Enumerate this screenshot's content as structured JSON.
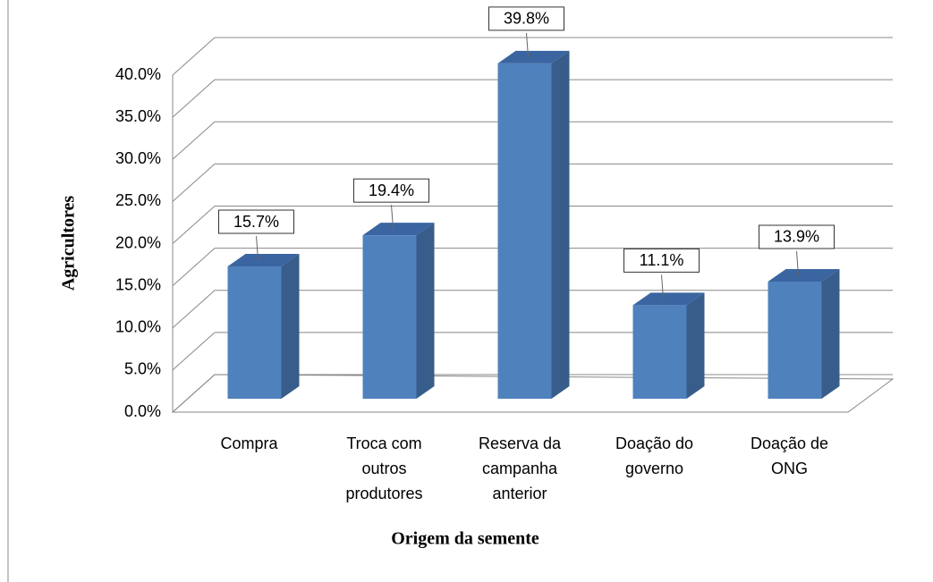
{
  "chart_data": {
    "type": "bar3d",
    "categories": [
      "Compra",
      "Troca com outros produtores",
      "Reserva da campanha anterior",
      "Doação do governo",
      "Doação de ONG"
    ],
    "values": [
      15.7,
      19.4,
      39.8,
      11.1,
      13.9
    ],
    "value_labels": [
      "15.7%",
      "19.4%",
      "39.8%",
      "11.1%",
      "13.9%"
    ],
    "color": "#4f81bd",
    "ylabel": "Agricultores",
    "xlabel": "Origem da semente",
    "ylim": [
      0,
      40
    ],
    "yticks": [
      {
        "value": 0,
        "label": "0.0%"
      },
      {
        "value": 5,
        "label": "5.0%"
      },
      {
        "value": 10,
        "label": "10.0%"
      },
      {
        "value": 15,
        "label": "15.0%"
      },
      {
        "value": 20,
        "label": "20.0%"
      },
      {
        "value": 25,
        "label": "25.0%"
      },
      {
        "value": 30,
        "label": "30.0%"
      },
      {
        "value": 35,
        "label": "35.0%"
      },
      {
        "value": 40,
        "label": "40.0%"
      }
    ],
    "grid": true
  }
}
